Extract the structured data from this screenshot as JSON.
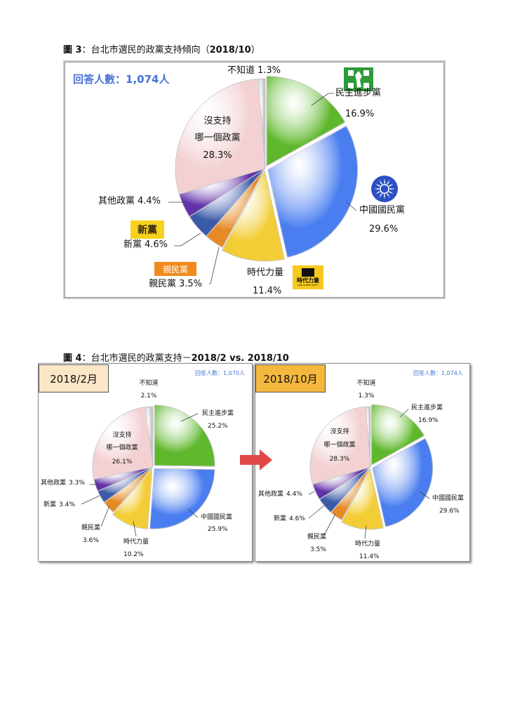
{
  "fig3": {
    "title_prefix": "圖 3",
    "title_sep": "：台北市選民的政黨支持傾向（",
    "title_year": "2018/10",
    "title_end": "）",
    "respondents": "回答人數：1,074人"
  },
  "fig4": {
    "title_prefix": "圖 4",
    "title_sep": "：台北市選民的政黨支持－",
    "title_bold": "2018/2 vs. 2018/10",
    "left_label": "2018/2月",
    "right_label": "2018/10月",
    "left_respondents": "回答人數：1,070人",
    "right_respondents": "回答人數：1,074人"
  },
  "logos": {
    "npp_line1": "時代力量",
    "npp_line2": "NEW POWER PARTY",
    "new_party": "新黨",
    "pfp": "親民黨"
  },
  "colors": {
    "dpp": "#5fb82c",
    "kmt": "#4a7ef0",
    "npp": "#f2cd35",
    "pfp": "#e58a24",
    "new": "#3b5aa8",
    "other": "#6232a8",
    "none": "#f3d1d3",
    "unknown": "#c4c4c4",
    "arrow": "#e04848"
  },
  "chart_data": [
    {
      "type": "pie",
      "title": "台北市選民的政黨支持傾向（2018/10）",
      "categories": [
        "民主進步黨",
        "中國國民黨",
        "時代力量",
        "親民黨",
        "新黨",
        "其他政黨",
        "沒支持哪一個政黨",
        "不知道"
      ],
      "values": [
        16.9,
        29.6,
        11.4,
        3.5,
        4.6,
        4.4,
        28.3,
        1.3
      ],
      "labels": [
        "16.9%",
        "29.6%",
        "11.4%",
        "3.5%",
        "4.6%",
        "4.4%",
        "28.3%",
        "1.3%"
      ]
    },
    {
      "type": "pie",
      "title": "2018/2月",
      "categories": [
        "民主進步黨",
        "中國國民黨",
        "時代力量",
        "親民黨",
        "新黨",
        "其他政黨",
        "沒支持哪一個政黨",
        "不知道"
      ],
      "values": [
        25.2,
        25.9,
        10.2,
        3.6,
        3.4,
        3.3,
        26.1,
        2.1
      ],
      "labels": [
        "25.2%",
        "25.9%",
        "10.2%",
        "3.6%",
        "3.4%",
        "3.3%",
        "26.1%",
        "2.1%"
      ]
    },
    {
      "type": "pie",
      "title": "2018/10月",
      "categories": [
        "民主進步黨",
        "中國國民黨",
        "時代力量",
        "親民黨",
        "新黨",
        "其他政黨",
        "沒支持哪一個政黨",
        "不知道"
      ],
      "values": [
        16.9,
        29.6,
        11.4,
        3.5,
        4.6,
        4.4,
        28.3,
        1.3
      ],
      "labels": [
        "16.9%",
        "29.6%",
        "11.4%",
        "3.5%",
        "4.6%",
        "4.4%",
        "28.3%",
        "1.3%"
      ]
    }
  ]
}
